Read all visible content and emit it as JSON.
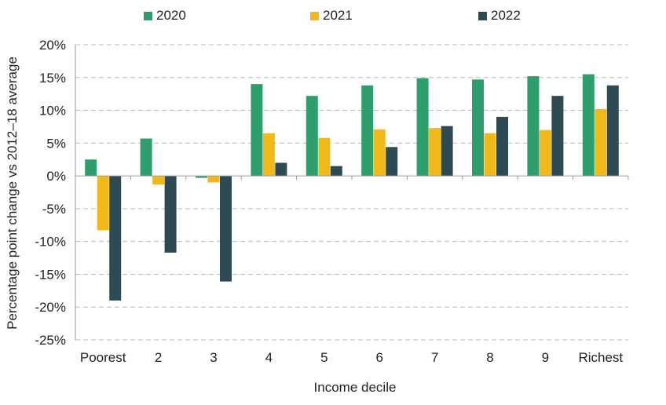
{
  "chart_data": {
    "type": "bar",
    "title": "",
    "xlabel": "Income decile",
    "ylabel": "Percentage point change vs 2012–18 average",
    "categories": [
      "Poorest",
      "2",
      "3",
      "4",
      "5",
      "6",
      "7",
      "8",
      "9",
      "Richest"
    ],
    "series": [
      {
        "name": "2020",
        "color": "#2e9e6c",
        "values": [
          2.5,
          5.7,
          -0.3,
          14.0,
          12.2,
          13.8,
          14.9,
          14.7,
          15.2,
          15.5
        ]
      },
      {
        "name": "2021",
        "color": "#f1b81a",
        "values": [
          -8.3,
          -1.3,
          -1.0,
          6.5,
          5.8,
          7.1,
          7.3,
          6.5,
          7.0,
          10.2
        ]
      },
      {
        "name": "2022",
        "color": "#2e4a52",
        "values": [
          -19.0,
          -11.7,
          -16.1,
          2.0,
          1.5,
          4.4,
          7.6,
          9.0,
          12.2,
          13.8
        ]
      }
    ],
    "ylim": [
      -25,
      20
    ],
    "yticks": [
      20,
      15,
      10,
      5,
      0,
      -5,
      -10,
      -15,
      -20,
      -25
    ],
    "ytick_labels": [
      "20%",
      "15%",
      "10%",
      "5%",
      "0%",
      "-5%",
      "-10%",
      "-15%",
      "-20%",
      "-25%"
    ],
    "grid": true,
    "legend_position": "top"
  }
}
